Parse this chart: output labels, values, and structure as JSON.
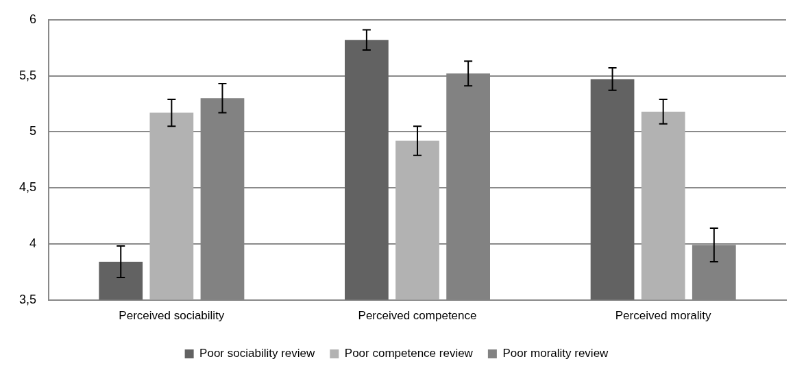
{
  "chart_data": {
    "type": "bar",
    "categories": [
      "Perceived sociability",
      "Perceived competence",
      "Perceived morality"
    ],
    "series": [
      {
        "name": "Poor sociability review",
        "color": "#626262",
        "values": [
          3.84,
          5.82,
          5.47
        ],
        "errors": [
          0.14,
          0.09,
          0.1
        ]
      },
      {
        "name": "Poor competence review",
        "color": "#b2b2b2",
        "values": [
          5.17,
          4.92,
          5.18
        ],
        "errors": [
          0.12,
          0.13,
          0.11
        ]
      },
      {
        "name": "Poor morality review",
        "color": "#828282",
        "values": [
          5.3,
          5.52,
          3.99
        ],
        "errors": [
          0.13,
          0.11,
          0.15
        ]
      }
    ],
    "ylim": [
      3.5,
      6
    ],
    "yticks": [
      {
        "value": 3.5,
        "label": "3,5"
      },
      4,
      {
        "value": 4.5,
        "label": "4,5"
      },
      5,
      {
        "value": 5.5,
        "label": "5,5"
      },
      6
    ],
    "grid": "y",
    "legend": "bottom"
  }
}
